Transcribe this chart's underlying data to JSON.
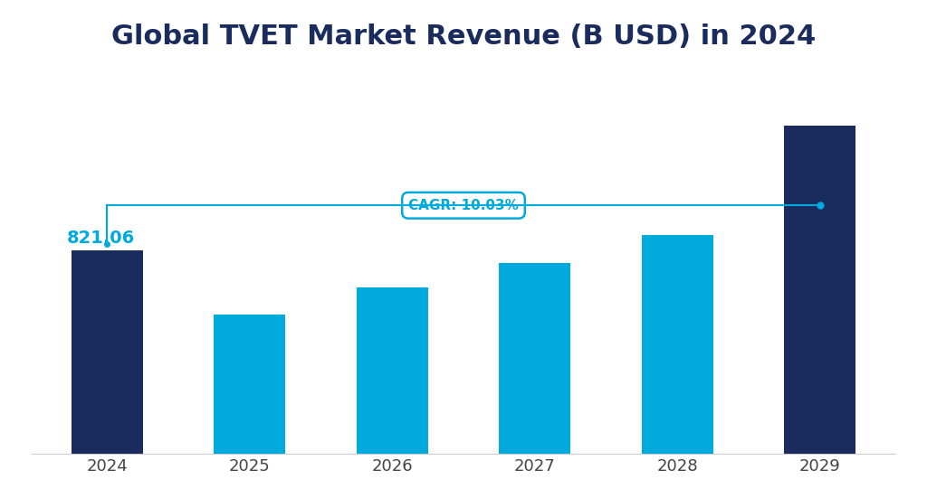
{
  "title": "Global TVET Market Revenue (B USD) in 2024",
  "categories": [
    "2024",
    "2025",
    "2026",
    "2027",
    "2028",
    "2029"
  ],
  "values": [
    821.06,
    560.0,
    672.0,
    769.0,
    882.0,
    1322.0
  ],
  "bar_colors": [
    "#1a2b5e",
    "#00aadd",
    "#00aadd",
    "#00aadd",
    "#00aadd",
    "#1a2b5e"
  ],
  "label_2024": "821.06",
  "label_color_2024": "#00aadd",
  "cagr_text": "CAGR: 10.03%",
  "cagr_color": "#00aadd",
  "title_color": "#1a2b5e",
  "title_fontsize": 22,
  "background_color": "#ffffff",
  "ylim": [
    0,
    1550
  ]
}
